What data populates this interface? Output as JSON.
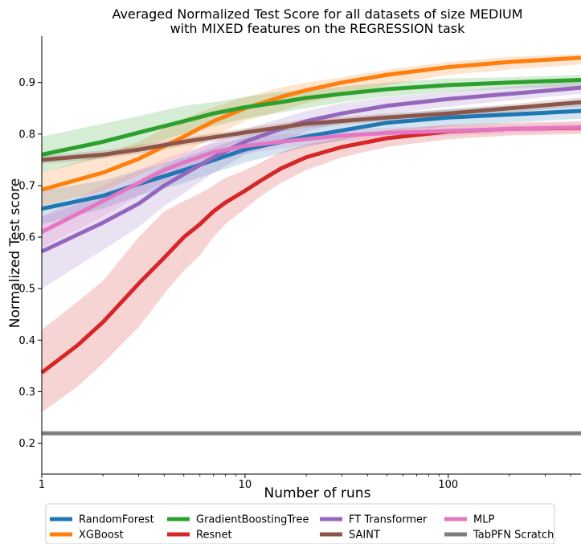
{
  "chart_data": {
    "type": "line",
    "title": [
      "Averaged Normalized Test Score for all datasets of size MEDIUM",
      "with MIXED features on the REGRESSION task"
    ],
    "xlabel": "Number of runs",
    "ylabel": "Normalized Test score",
    "xscale": "log",
    "xlim": [
      1,
      450
    ],
    "ylim": [
      0.14,
      0.99
    ],
    "x_ticks": [
      {
        "value": 1,
        "label": "1"
      },
      {
        "value": 10,
        "label": "10"
      },
      {
        "value": 100,
        "label": "100"
      }
    ],
    "y_ticks": [
      {
        "value": 0.2,
        "label": "0.2"
      },
      {
        "value": 0.3,
        "label": "0.3"
      },
      {
        "value": 0.4,
        "label": "0.4"
      },
      {
        "value": 0.5,
        "label": "0.5"
      },
      {
        "value": 0.6,
        "label": "0.6"
      },
      {
        "value": 0.7,
        "label": "0.7"
      },
      {
        "value": 0.8,
        "label": "0.8"
      },
      {
        "value": 0.9,
        "label": "0.9"
      }
    ],
    "grid": false,
    "legend_position": "bottom",
    "series": [
      {
        "name": "RandomForest",
        "color": "#1f77b4",
        "x": [
          1,
          2,
          3,
          5,
          10,
          20,
          50,
          100,
          200,
          450
        ],
        "y": [
          0.655,
          0.68,
          0.703,
          0.73,
          0.77,
          0.795,
          0.822,
          0.832,
          0.838,
          0.845
        ],
        "lower": [
          0.625,
          0.655,
          0.68,
          0.705,
          0.745,
          0.775,
          0.805,
          0.815,
          0.822,
          0.83
        ],
        "upper": [
          0.69,
          0.71,
          0.73,
          0.755,
          0.795,
          0.815,
          0.838,
          0.848,
          0.855,
          0.86
        ]
      },
      {
        "name": "XGBoost",
        "color": "#ff7f0e",
        "x": [
          1,
          2,
          3,
          5,
          7,
          10,
          15,
          20,
          30,
          50,
          100,
          200,
          450
        ],
        "y": [
          0.692,
          0.725,
          0.752,
          0.795,
          0.825,
          0.85,
          0.872,
          0.885,
          0.9,
          0.915,
          0.93,
          0.94,
          0.948
        ],
        "lower": [
          0.66,
          0.69,
          0.72,
          0.76,
          0.795,
          0.825,
          0.845,
          0.86,
          0.875,
          0.895,
          0.915,
          0.925,
          0.935
        ],
        "upper": [
          0.725,
          0.76,
          0.785,
          0.83,
          0.852,
          0.872,
          0.89,
          0.9,
          0.91,
          0.925,
          0.94,
          0.95,
          0.955
        ]
      },
      {
        "name": "GradientBoostingTree",
        "color": "#2ca02c",
        "x": [
          1,
          2,
          3,
          5,
          7,
          10,
          15,
          20,
          30,
          50,
          100,
          200,
          450
        ],
        "y": [
          0.76,
          0.785,
          0.803,
          0.825,
          0.84,
          0.852,
          0.862,
          0.87,
          0.878,
          0.887,
          0.895,
          0.9,
          0.905
        ],
        "lower": [
          0.725,
          0.755,
          0.775,
          0.8,
          0.815,
          0.83,
          0.842,
          0.85,
          0.862,
          0.873,
          0.882,
          0.888,
          0.893
        ],
        "upper": [
          0.795,
          0.82,
          0.835,
          0.855,
          0.862,
          0.872,
          0.882,
          0.885,
          0.892,
          0.9,
          0.908,
          0.91,
          0.915
        ]
      },
      {
        "name": "Resnet",
        "color": "#d62728",
        "x": [
          1,
          1.5,
          2,
          3,
          4,
          5,
          6,
          7,
          8,
          10,
          12,
          15,
          20,
          30,
          50,
          100,
          200,
          450
        ],
        "y": [
          0.337,
          0.39,
          0.435,
          0.51,
          0.56,
          0.6,
          0.625,
          0.65,
          0.667,
          0.69,
          0.71,
          0.733,
          0.755,
          0.775,
          0.792,
          0.805,
          0.81,
          0.812
        ],
        "lower": [
          0.26,
          0.31,
          0.355,
          0.425,
          0.49,
          0.535,
          0.565,
          0.6,
          0.625,
          0.655,
          0.68,
          0.705,
          0.73,
          0.755,
          0.775,
          0.79,
          0.797,
          0.8
        ],
        "upper": [
          0.42,
          0.475,
          0.515,
          0.6,
          0.65,
          0.67,
          0.685,
          0.7,
          0.715,
          0.73,
          0.745,
          0.765,
          0.78,
          0.793,
          0.808,
          0.818,
          0.822,
          0.825
        ]
      },
      {
        "name": "FT Transformer",
        "color": "#9467bd",
        "x": [
          1,
          2,
          3,
          4,
          5,
          7,
          10,
          15,
          20,
          30,
          50,
          100,
          200,
          450
        ],
        "y": [
          0.572,
          0.628,
          0.665,
          0.7,
          0.722,
          0.755,
          0.785,
          0.81,
          0.825,
          0.84,
          0.855,
          0.868,
          0.878,
          0.89
        ],
        "lower": [
          0.5,
          0.575,
          0.62,
          0.66,
          0.685,
          0.725,
          0.76,
          0.785,
          0.805,
          0.822,
          0.838,
          0.853,
          0.865,
          0.878
        ],
        "upper": [
          0.64,
          0.68,
          0.71,
          0.74,
          0.76,
          0.785,
          0.81,
          0.83,
          0.845,
          0.86,
          0.872,
          0.882,
          0.892,
          0.902
        ]
      },
      {
        "name": "SAINT",
        "color": "#8c564b",
        "x": [
          1,
          2,
          3,
          5,
          10,
          20,
          50,
          100,
          200,
          450
        ],
        "y": [
          0.75,
          0.76,
          0.77,
          0.785,
          0.803,
          0.82,
          0.832,
          0.84,
          0.85,
          0.862
        ],
        "lower": [
          0.742,
          0.752,
          0.762,
          0.777,
          0.795,
          0.812,
          0.825,
          0.832,
          0.842,
          0.853
        ],
        "upper": [
          0.758,
          0.768,
          0.778,
          0.793,
          0.811,
          0.828,
          0.84,
          0.848,
          0.858,
          0.871
        ]
      },
      {
        "name": "MLP",
        "color": "#e377c2",
        "x": [
          1,
          2,
          3,
          4,
          5,
          7,
          10,
          15,
          20,
          30,
          50,
          100,
          200,
          450
        ],
        "y": [
          0.61,
          0.67,
          0.705,
          0.73,
          0.745,
          0.765,
          0.777,
          0.785,
          0.79,
          0.797,
          0.802,
          0.806,
          0.81,
          0.813
        ],
        "lower": [
          0.58,
          0.64,
          0.68,
          0.708,
          0.725,
          0.748,
          0.762,
          0.772,
          0.778,
          0.786,
          0.792,
          0.797,
          0.801,
          0.805
        ],
        "upper": [
          0.64,
          0.7,
          0.73,
          0.752,
          0.765,
          0.782,
          0.792,
          0.798,
          0.802,
          0.808,
          0.812,
          0.816,
          0.819,
          0.822
        ]
      },
      {
        "name": "TabPFN Scratch",
        "color": "#7f7f7f",
        "x": [
          1,
          450
        ],
        "y": [
          0.219,
          0.219
        ],
        "lower": [
          0.219,
          0.219
        ],
        "upper": [
          0.219,
          0.219
        ]
      }
    ]
  }
}
